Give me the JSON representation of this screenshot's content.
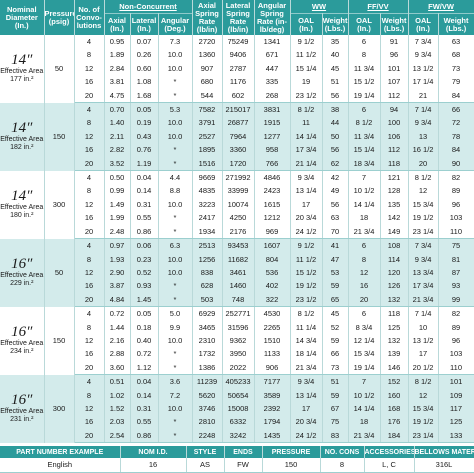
{
  "header": {
    "nominal_diameter": "Nominal Diameter (In.)",
    "pressure": "Pressure (psig)",
    "convolutions": "No. of Convo-lutions",
    "non_concurrent": "Non-Concurrent",
    "axial": "Axial (In.)",
    "lateral": "Lateral (In.)",
    "angular": "Angular (Deg.)",
    "axial_spring_rate": "Axial Spring Rate (lb/in)",
    "lateral_spring_rate": "Lateral Spring Rate (lb/in)",
    "angular_spring_rate": "Angular Spring Rate (in-lb/deg)",
    "ww": "WW",
    "ff_vv": "FF/VV",
    "fw_vw": "FW/VW",
    "oal": "OAL (In.)",
    "weight": "Weight (Lbs.)"
  },
  "groups": [
    {
      "diameter": "14″",
      "label": "Effective Area",
      "area": "177 in.²",
      "pressure": "50",
      "rows": [
        [
          "4",
          "0.95",
          "0.07",
          "7.3",
          "2720",
          "75249",
          "1341",
          "9 1/2",
          "35",
          "6",
          "91",
          "7 3/4",
          "63"
        ],
        [
          "8",
          "1.89",
          "0.26",
          "10.0",
          "1360",
          "9406",
          "671",
          "11 1/2",
          "40",
          "8",
          "96",
          "9 3/4",
          "68"
        ],
        [
          "12",
          "2.84",
          "0.60",
          "10.0",
          "907",
          "2787",
          "447",
          "15 1/4",
          "45",
          "11 3/4",
          "101",
          "13 1/2",
          "73"
        ],
        [
          "16",
          "3.81",
          "1.08",
          "*",
          "680",
          "1176",
          "335",
          "19",
          "51",
          "15 1/2",
          "107",
          "17 1/4",
          "79"
        ],
        [
          "20",
          "4.75",
          "1.68",
          "*",
          "544",
          "602",
          "268",
          "23 1/2",
          "56",
          "19 1/4",
          "112",
          "21",
          "84"
        ]
      ]
    },
    {
      "diameter": "14″",
      "label": "Effective Area",
      "area": "182 in.²",
      "pressure": "150",
      "rows": [
        [
          "4",
          "0.70",
          "0.05",
          "5.3",
          "7582",
          "215017",
          "3831",
          "8 1/2",
          "38",
          "6",
          "94",
          "7 1/4",
          "66"
        ],
        [
          "8",
          "1.40",
          "0.19",
          "10.0",
          "3791",
          "26877",
          "1915",
          "11",
          "44",
          "8 1/2",
          "100",
          "9 3/4",
          "72"
        ],
        [
          "12",
          "2.11",
          "0.43",
          "10.0",
          "2527",
          "7964",
          "1277",
          "14 1/4",
          "50",
          "11 3/4",
          "106",
          "13",
          "78"
        ],
        [
          "16",
          "2.82",
          "0.76",
          "*",
          "1895",
          "3360",
          "958",
          "17 3/4",
          "56",
          "15 1/4",
          "112",
          "16 1/2",
          "84"
        ],
        [
          "20",
          "3.52",
          "1.19",
          "*",
          "1516",
          "1720",
          "766",
          "21 1/4",
          "62",
          "18 3/4",
          "118",
          "20",
          "90"
        ]
      ]
    },
    {
      "diameter": "14″",
      "label": "Effective Area",
      "area": "180 in.²",
      "pressure": "300",
      "rows": [
        [
          "4",
          "0.50",
          "0.04",
          "4.4",
          "9669",
          "271992",
          "4846",
          "9 3/4",
          "42",
          "7",
          "121",
          "8 1/2",
          "82"
        ],
        [
          "8",
          "0.99",
          "0.14",
          "8.8",
          "4835",
          "33999",
          "2423",
          "13 1/4",
          "49",
          "10 1/2",
          "128",
          "12",
          "89"
        ],
        [
          "12",
          "1.49",
          "0.31",
          "10.0",
          "3223",
          "10074",
          "1615",
          "17",
          "56",
          "14 1/4",
          "135",
          "15 3/4",
          "96"
        ],
        [
          "16",
          "1.99",
          "0.55",
          "*",
          "2417",
          "4250",
          "1212",
          "20 3/4",
          "63",
          "18",
          "142",
          "19 1/2",
          "103"
        ],
        [
          "20",
          "2.48",
          "0.86",
          "*",
          "1934",
          "2176",
          "969",
          "24 1/2",
          "70",
          "21 3/4",
          "149",
          "23 1/4",
          "110"
        ]
      ]
    },
    {
      "diameter": "16″",
      "label": "Effective Area",
      "area": "229 in.²",
      "pressure": "50",
      "rows": [
        [
          "4",
          "0.97",
          "0.06",
          "6.3",
          "2513",
          "93453",
          "1607",
          "9 1/2",
          "41",
          "6",
          "108",
          "7 3/4",
          "75"
        ],
        [
          "8",
          "1.93",
          "0.23",
          "10.0",
          "1256",
          "11682",
          "804",
          "11 1/2",
          "47",
          "8",
          "114",
          "9 3/4",
          "81"
        ],
        [
          "12",
          "2.90",
          "0.52",
          "10.0",
          "838",
          "3461",
          "536",
          "15 1/2",
          "53",
          "12",
          "120",
          "13 3/4",
          "87"
        ],
        [
          "16",
          "3.87",
          "0.93",
          "*",
          "628",
          "1460",
          "402",
          "19 1/2",
          "59",
          "16",
          "126",
          "17 3/4",
          "93"
        ],
        [
          "20",
          "4.84",
          "1.45",
          "*",
          "503",
          "748",
          "322",
          "23 1/2",
          "65",
          "20",
          "132",
          "21 3/4",
          "99"
        ]
      ]
    },
    {
      "diameter": "16″",
      "label": "Effective Area",
      "area": "234 in.²",
      "pressure": "150",
      "rows": [
        [
          "4",
          "0.72",
          "0.05",
          "5.0",
          "6929",
          "252771",
          "4530",
          "8 1/2",
          "45",
          "6",
          "118",
          "7 1/4",
          "82"
        ],
        [
          "8",
          "1.44",
          "0.18",
          "9.9",
          "3465",
          "31596",
          "2265",
          "11 1/4",
          "52",
          "8 3/4",
          "125",
          "10",
          "89"
        ],
        [
          "12",
          "2.16",
          "0.40",
          "10.0",
          "2310",
          "9362",
          "1510",
          "14 3/4",
          "59",
          "12 1/4",
          "132",
          "13 1/2",
          "96"
        ],
        [
          "16",
          "2.88",
          "0.72",
          "*",
          "1732",
          "3950",
          "1133",
          "18 1/4",
          "66",
          "15 3/4",
          "139",
          "17",
          "103"
        ],
        [
          "20",
          "3.60",
          "1.12",
          "*",
          "1386",
          "2022",
          "906",
          "21 3/4",
          "73",
          "19 1/4",
          "146",
          "20 1/2",
          "110"
        ]
      ]
    },
    {
      "diameter": "16″",
      "label": "Effective Area",
      "area": "231 in.²",
      "pressure": "300",
      "rows": [
        [
          "4",
          "0.51",
          "0.04",
          "3.6",
          "11239",
          "405233",
          "7177",
          "9 3/4",
          "51",
          "7",
          "152",
          "8 1/2",
          "101"
        ],
        [
          "8",
          "1.02",
          "0.14",
          "7.2",
          "5620",
          "50654",
          "3589",
          "13 1/4",
          "59",
          "10 1/2",
          "160",
          "12",
          "109"
        ],
        [
          "12",
          "1.52",
          "0.31",
          "10.0",
          "3746",
          "15008",
          "2392",
          "17",
          "67",
          "14 1/4",
          "168",
          "15 3/4",
          "117"
        ],
        [
          "16",
          "2.03",
          "0.55",
          "*",
          "2810",
          "6332",
          "1794",
          "20 3/4",
          "75",
          "18",
          "176",
          "19 1/2",
          "125"
        ],
        [
          "20",
          "2.54",
          "0.86",
          "*",
          "2248",
          "3242",
          "1435",
          "24 1/2",
          "83",
          "21 3/4",
          "184",
          "23 1/4",
          "133"
        ]
      ]
    }
  ],
  "part_number": {
    "headers": [
      "PART NUMBER EXAMPLE",
      "NOM I.D.",
      "STYLE",
      "ENDS",
      "PRESSURE",
      "NO. CONS",
      "ACCESSORIES",
      "BELLOWS MATERIAL"
    ],
    "values": [
      "English",
      "16",
      "AS",
      "FW",
      "150",
      "8",
      "L, C",
      "316L"
    ]
  }
}
